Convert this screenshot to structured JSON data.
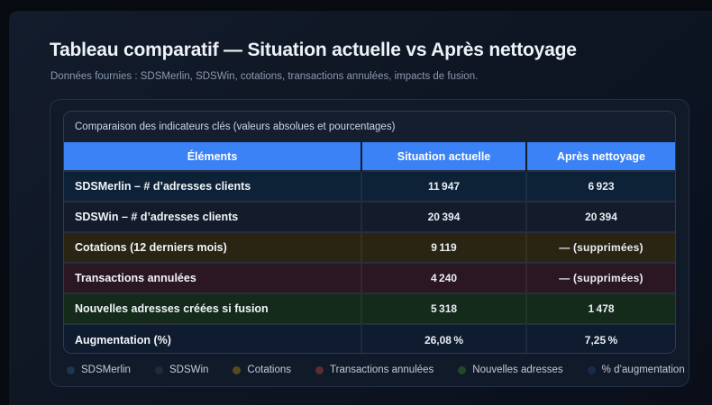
{
  "page": {
    "title": "Tableau comparatif — Situation actuelle vs Après nettoyage",
    "subtitle": "Données fournies : SDSMerlin, SDSWin, cotations, transactions annulées, impacts de fusion."
  },
  "card": {
    "caption": "Comparaison des indicateurs clés (valeurs absolues et pourcentages)"
  },
  "table": {
    "columns": [
      "Éléments",
      "Situation actuelle",
      "Après nettoyage"
    ],
    "rows": [
      {
        "label": "SDSMerlin – # d’adresses clients",
        "current": "11 947",
        "after": "6 923",
        "row_color": "#0d2237"
      },
      {
        "label": "SDSWin – # d’adresses clients",
        "current": "20 394",
        "after": "20 394",
        "row_color": "#141c2b"
      },
      {
        "label": "Cotations (12 derniers mois)",
        "current": "9 119",
        "after": "— (supprimées)",
        "row_color": "#2a2413"
      },
      {
        "label": "Transactions annulées",
        "current": "4 240",
        "after": "— (supprimées)",
        "row_color": "#2a1722"
      },
      {
        "label": "Nouvelles adresses créées si fusion",
        "current": "5 318",
        "after": "1 478",
        "row_color": "#142a1b"
      },
      {
        "label": "Augmentation (%)",
        "current": "26,08 %",
        "after": "7,25 %",
        "row_color": "#0f1b2f"
      }
    ]
  },
  "legend": {
    "items": [
      {
        "label": "SDSMerlin",
        "color": "#1a3650"
      },
      {
        "label": "SDSWin",
        "color": "#202a3c"
      },
      {
        "label": "Cotations",
        "color": "#59491f"
      },
      {
        "label": "Transactions annulées",
        "color": "#5d2a36"
      },
      {
        "label": "Nouvelles adresses",
        "color": "#20482c"
      },
      {
        "label": "% d’augmentation",
        "color": "#182c48"
      }
    ]
  },
  "colors": {
    "header_bg": "#3b82f6",
    "header_text": "#ffffff",
    "card_bg": "#111a29",
    "page_bg": "#0e1521"
  }
}
